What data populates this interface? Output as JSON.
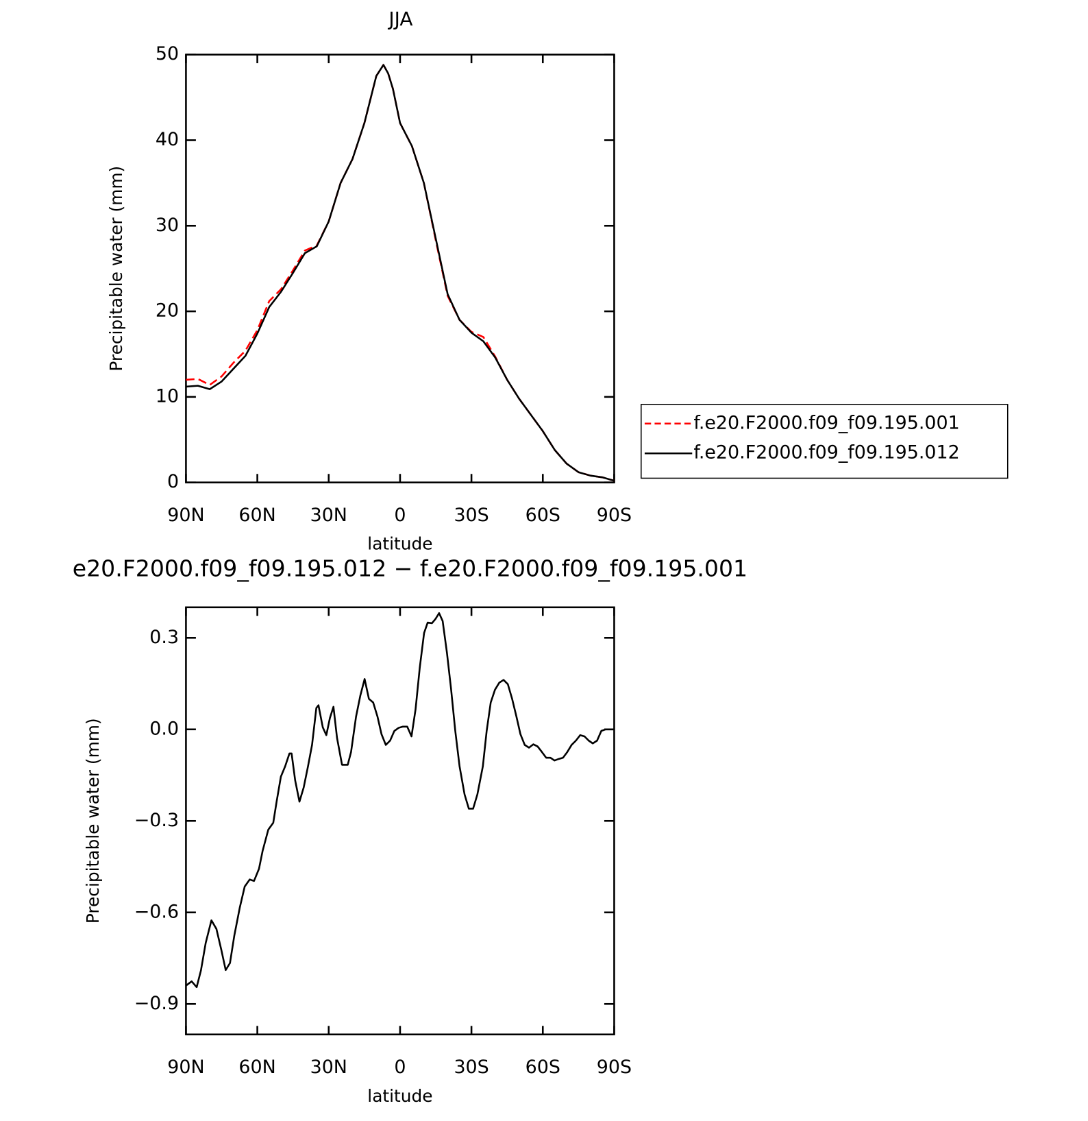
{
  "chart_data": [
    {
      "type": "line",
      "title": "JJA",
      "x_label": "latitude",
      "y_label": "Precipitable water (mm)",
      "x": [
        90,
        85,
        80,
        75,
        70,
        65,
        60,
        55,
        50,
        45,
        40,
        35,
        30,
        25,
        20,
        15,
        10,
        7,
        5,
        3,
        0,
        -5,
        -10,
        -15,
        -20,
        -25,
        -30,
        -35,
        -40,
        -45,
        -50,
        -55,
        -60,
        -65,
        -70,
        -75,
        -80,
        -85,
        -90
      ],
      "series": [
        {
          "name": "f.e20.F2000.f09_f09.195.001",
          "color": "#ff0000",
          "linestyle": "dashed",
          "values": [
            12.0,
            12.1,
            11.4,
            12.4,
            14.0,
            15.4,
            17.8,
            21.2,
            22.6,
            24.8,
            27.1,
            27.7,
            30.5,
            35.0,
            37.8,
            42.0,
            47.5,
            48.8,
            47.8,
            46.0,
            42.0,
            39.3,
            35.0,
            28.3,
            21.8,
            19.0,
            17.6,
            17.0,
            14.7,
            12.0,
            9.8,
            7.9,
            6.0,
            3.8,
            2.2,
            1.2,
            0.8,
            0.6,
            0.2
          ]
        },
        {
          "name": "f.e20.F2000.f09_f09.195.012",
          "color": "#000000",
          "linestyle": "solid",
          "values": [
            11.2,
            11.3,
            10.9,
            11.8,
            13.3,
            14.8,
            17.4,
            20.5,
            22.3,
            24.5,
            26.8,
            27.6,
            30.5,
            35.0,
            37.8,
            42.0,
            47.5,
            48.8,
            47.8,
            46.0,
            42.0,
            39.3,
            35.0,
            28.5,
            22.0,
            19.0,
            17.5,
            16.5,
            14.6,
            12.0,
            9.8,
            7.9,
            6.0,
            3.8,
            2.2,
            1.2,
            0.8,
            0.6,
            0.2
          ]
        }
      ],
      "xlim": [
        90,
        -90
      ],
      "xticks": [
        {
          "value": 90,
          "label": "90N"
        },
        {
          "value": 60,
          "label": "60N"
        },
        {
          "value": 30,
          "label": "30N"
        },
        0,
        {
          "value": -30,
          "label": "30S"
        },
        {
          "value": -60,
          "label": "60S"
        },
        {
          "value": -90,
          "label": "90S"
        }
      ],
      "ylim": [
        0,
        50
      ],
      "yticks": [
        0,
        10,
        20,
        30,
        40,
        50
      ],
      "legend": "right"
    },
    {
      "type": "line",
      "title": "e20.F2000.f09_f09.195.012 − f.e20.F2000.f09_f09.195.001",
      "x_label": "latitude",
      "y_label": "Precipitable water (mm)",
      "x": [
        90,
        87.6,
        85.5,
        83.7,
        81.7,
        79.3,
        77.2,
        75.1,
        73.3,
        71.5,
        69.7,
        67.4,
        65.3,
        63.2,
        61.4,
        59.3,
        57.8,
        55.4,
        53.3,
        51.9,
        50.1,
        48.3,
        46.5,
        45.6,
        44.1,
        42.3,
        40.5,
        38.7,
        37.0,
        35.2,
        34.3,
        32.5,
        31.0,
        29.5,
        28.0,
        26.5,
        24.4,
        22.0,
        20.6,
        18.5,
        16.7,
        14.9,
        13.1,
        11.3,
        9.5,
        7.8,
        6.0,
        4.2,
        2.4,
        0.6,
        -1.2,
        -3.0,
        -4.8,
        -6.5,
        -8.3,
        -10.1,
        -11.6,
        -13.4,
        -14.9,
        -16.4,
        -17.9,
        -19.7,
        -21.4,
        -23.2,
        -25.0,
        -27.1,
        -28.9,
        -30.7,
        -32.5,
        -34.8,
        -36.4,
        -38.1,
        -39.9,
        -41.7,
        -43.5,
        -45.3,
        -47.1,
        -48.9,
        -50.6,
        -52.4,
        -54.2,
        -56.0,
        -57.8,
        -59.6,
        -61.4,
        -63.2,
        -64.9,
        -66.7,
        -68.5,
        -70.3,
        -72.1,
        -73.9,
        -75.7,
        -77.5,
        -79.3,
        -81.0,
        -82.8,
        -84.6,
        -86.4,
        -90
      ],
      "values": [
        -0.84,
        -0.826,
        -0.845,
        -0.79,
        -0.7,
        -0.626,
        -0.654,
        -0.724,
        -0.789,
        -0.766,
        -0.677,
        -0.585,
        -0.515,
        -0.492,
        -0.497,
        -0.457,
        -0.399,
        -0.329,
        -0.306,
        -0.237,
        -0.155,
        -0.121,
        -0.079,
        -0.079,
        -0.167,
        -0.237,
        -0.19,
        -0.121,
        -0.051,
        0.07,
        0.079,
        0.007,
        -0.019,
        0.037,
        0.074,
        -0.028,
        -0.116,
        -0.116,
        -0.074,
        0.042,
        0.111,
        0.165,
        0.1,
        0.088,
        0.042,
        -0.016,
        -0.051,
        -0.037,
        -0.005,
        0.005,
        0.009,
        0.009,
        -0.023,
        0.065,
        0.204,
        0.316,
        0.35,
        0.348,
        0.362,
        0.381,
        0.355,
        0.251,
        0.135,
        -0.005,
        -0.121,
        -0.213,
        -0.26,
        -0.26,
        -0.213,
        -0.121,
        -0.005,
        0.088,
        0.13,
        0.153,
        0.162,
        0.148,
        0.1,
        0.042,
        -0.016,
        -0.051,
        -0.06,
        -0.049,
        -0.056,
        -0.074,
        -0.093,
        -0.093,
        -0.102,
        -0.097,
        -0.093,
        -0.074,
        -0.051,
        -0.037,
        -0.019,
        -0.023,
        -0.037,
        -0.046,
        -0.037,
        -0.005,
        0,
        0
      ],
      "color": "#000000",
      "xlim": [
        90,
        -90
      ],
      "xticks": [
        {
          "value": 90,
          "label": "90N"
        },
        {
          "value": 60,
          "label": "60N"
        },
        {
          "value": 30,
          "label": "30N"
        },
        0,
        {
          "value": -30,
          "label": "30S"
        },
        {
          "value": -60,
          "label": "60S"
        },
        {
          "value": -90,
          "label": "90S"
        }
      ],
      "ylim": [
        -1.0,
        0.4
      ],
      "yticks": [
        {
          "value": -0.9,
          "label": "−0.9"
        },
        {
          "value": -0.6,
          "label": "−0.6"
        },
        {
          "value": -0.3,
          "label": "−0.3"
        },
        {
          "value": 0,
          "label": "0.0"
        },
        0.3
      ]
    }
  ]
}
